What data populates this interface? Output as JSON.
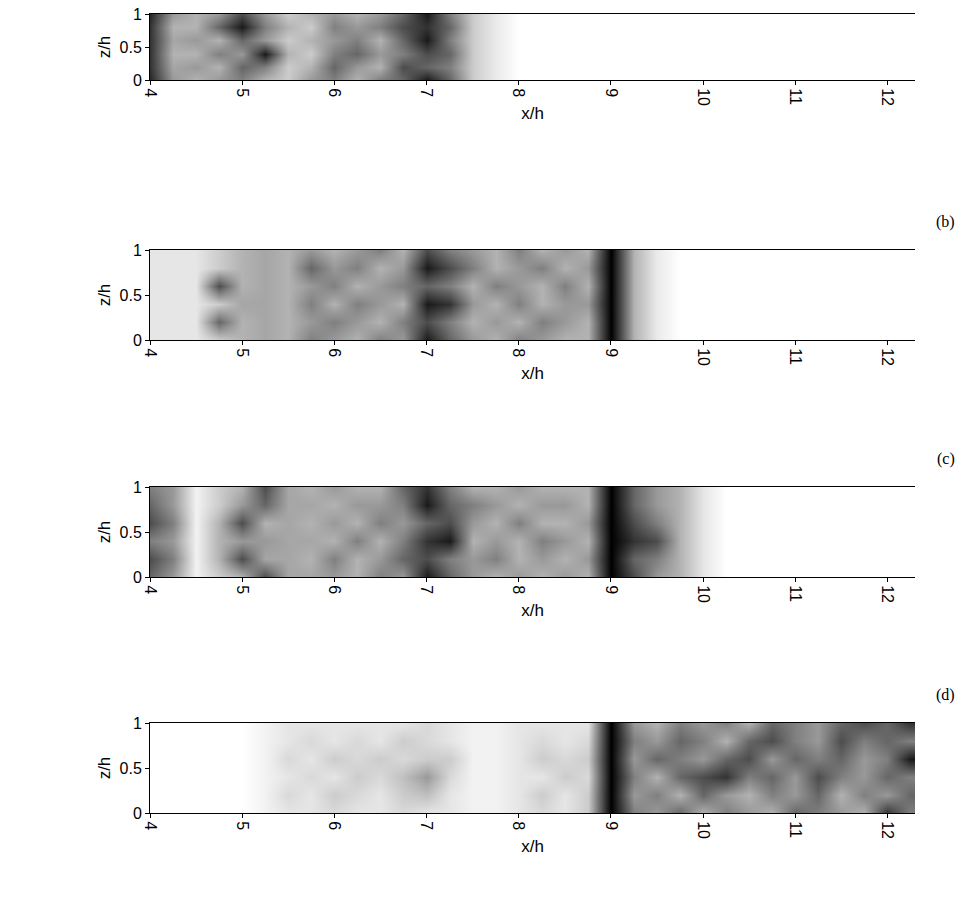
{
  "chart_data": [
    {
      "type": "heatmap",
      "x_label": "x/h",
      "y_label": "z/h",
      "xlim": [
        4,
        12.3
      ],
      "ylim": [
        0,
        1
      ],
      "xticks": [
        4,
        5,
        6,
        7,
        8,
        9,
        10,
        11,
        12
      ],
      "yticks": [
        0,
        0.5,
        1
      ],
      "zlim": [
        0,
        1
      ],
      "x": [
        4,
        4.25,
        4.5,
        4.75,
        5,
        5.25,
        5.5,
        5.75,
        6,
        6.25,
        6.5,
        6.75,
        7,
        7.25,
        7.5,
        7.75,
        8,
        8.25,
        8.5,
        8.75,
        9,
        9.25,
        9.5,
        9.75,
        10,
        10.25,
        10.5,
        10.75,
        11,
        11.25,
        11.5,
        11.75,
        12,
        12.25
      ],
      "y": [
        0,
        0.2,
        0.4,
        0.6,
        0.8,
        1
      ],
      "z": [
        [
          0.85,
          0.4,
          0.3,
          0.4,
          0.5,
          0.3,
          0.2,
          0.4,
          0.5,
          0.3,
          0.5,
          0.6,
          0.9,
          0.6,
          0.2,
          0.08,
          0,
          0,
          0,
          0,
          0,
          0,
          0,
          0,
          0,
          0,
          0,
          0,
          0,
          0,
          0,
          0,
          0,
          0
        ],
        [
          0.8,
          0.35,
          0.4,
          0.3,
          0.6,
          0.5,
          0.2,
          0.3,
          0.6,
          0.4,
          0.3,
          0.7,
          0.6,
          0.5,
          0.2,
          0.08,
          0,
          0,
          0,
          0,
          0,
          0,
          0,
          0,
          0,
          0,
          0,
          0,
          0,
          0,
          0,
          0,
          0,
          0
        ],
        [
          0.8,
          0.3,
          0.3,
          0.5,
          0.4,
          0.9,
          0.3,
          0.2,
          0.5,
          0.6,
          0.4,
          0.5,
          0.7,
          0.6,
          0.2,
          0.08,
          0,
          0,
          0,
          0,
          0,
          0,
          0,
          0,
          0,
          0,
          0,
          0,
          0,
          0,
          0,
          0,
          0,
          0
        ],
        [
          0.8,
          0.35,
          0.4,
          0.3,
          0.6,
          0.4,
          0.2,
          0.3,
          0.4,
          0.5,
          0.3,
          0.6,
          0.9,
          0.5,
          0.2,
          0.08,
          0,
          0,
          0,
          0,
          0,
          0,
          0,
          0,
          0,
          0,
          0,
          0,
          0,
          0,
          0,
          0,
          0,
          0
        ],
        [
          0.8,
          0.3,
          0.3,
          0.6,
          0.9,
          0.5,
          0.3,
          0.2,
          0.5,
          0.4,
          0.5,
          0.7,
          0.8,
          0.6,
          0.2,
          0.08,
          0,
          0,
          0,
          0,
          0,
          0,
          0,
          0,
          0,
          0,
          0,
          0,
          0,
          0,
          0,
          0,
          0,
          0
        ],
        [
          0.85,
          0.4,
          0.3,
          0.4,
          0.7,
          0.4,
          0.2,
          0.3,
          0.4,
          0.3,
          0.4,
          0.6,
          0.9,
          0.5,
          0.2,
          0.08,
          0,
          0,
          0,
          0,
          0,
          0,
          0,
          0,
          0,
          0,
          0,
          0,
          0,
          0,
          0,
          0,
          0,
          0
        ]
      ]
    },
    {
      "type": "heatmap",
      "label": "(b)",
      "x_label": "x/h",
      "y_label": "z/h",
      "xlim": [
        4,
        12.3
      ],
      "ylim": [
        0,
        1
      ],
      "xticks": [
        4,
        5,
        6,
        7,
        8,
        9,
        10,
        11,
        12
      ],
      "yticks": [
        0,
        0.5,
        1
      ],
      "zlim": [
        0,
        1
      ],
      "x": [
        4,
        4.25,
        4.5,
        4.75,
        5,
        5.25,
        5.5,
        5.75,
        6,
        6.25,
        6.5,
        6.75,
        7,
        7.25,
        7.5,
        7.75,
        8,
        8.25,
        8.5,
        8.75,
        9,
        9.25,
        9.5,
        9.75,
        10,
        10.25,
        10.5,
        10.75,
        11,
        11.25,
        11.5,
        11.75,
        12,
        12.25
      ],
      "y": [
        0,
        0.2,
        0.4,
        0.6,
        0.8,
        1
      ],
      "z": [
        [
          0.1,
          0.1,
          0.1,
          0.2,
          0.3,
          0.35,
          0.3,
          0.5,
          0.4,
          0.3,
          0.5,
          0.4,
          0.9,
          0.6,
          0.4,
          0.3,
          0.5,
          0.4,
          0.3,
          0.3,
          1,
          0.3,
          0.08,
          0,
          0,
          0,
          0,
          0,
          0,
          0,
          0,
          0,
          0,
          0
        ],
        [
          0.1,
          0.1,
          0.1,
          0.6,
          0.3,
          0.35,
          0.3,
          0.4,
          0.5,
          0.4,
          0.3,
          0.5,
          0.7,
          0.5,
          0.3,
          0.4,
          0.3,
          0.5,
          0.4,
          0.3,
          1,
          0.3,
          0.08,
          0,
          0,
          0,
          0,
          0,
          0,
          0,
          0,
          0,
          0,
          0
        ],
        [
          0.1,
          0.1,
          0.1,
          0.2,
          0.35,
          0.35,
          0.3,
          0.5,
          0.3,
          0.5,
          0.4,
          0.3,
          0.9,
          0.8,
          0.4,
          0.3,
          0.5,
          0.3,
          0.4,
          0.4,
          1,
          0.3,
          0.08,
          0,
          0,
          0,
          0,
          0,
          0,
          0,
          0,
          0,
          0,
          0
        ],
        [
          0.1,
          0.1,
          0.1,
          0.7,
          0.3,
          0.35,
          0.3,
          0.4,
          0.5,
          0.3,
          0.4,
          0.5,
          0.6,
          0.5,
          0.3,
          0.5,
          0.4,
          0.3,
          0.5,
          0.3,
          1,
          0.3,
          0.08,
          0,
          0,
          0,
          0,
          0,
          0,
          0,
          0,
          0,
          0,
          0
        ],
        [
          0.1,
          0.1,
          0.1,
          0.2,
          0.3,
          0.35,
          0.3,
          0.6,
          0.4,
          0.5,
          0.3,
          0.4,
          0.9,
          0.7,
          0.5,
          0.3,
          0.4,
          0.5,
          0.3,
          0.4,
          1,
          0.3,
          0.08,
          0,
          0,
          0,
          0,
          0,
          0,
          0,
          0,
          0,
          0,
          0
        ],
        [
          0.1,
          0.1,
          0.1,
          0.2,
          0.3,
          0.35,
          0.3,
          0.4,
          0.3,
          0.4,
          0.5,
          0.3,
          0.7,
          0.5,
          0.4,
          0.3,
          0.5,
          0.3,
          0.4,
          0.3,
          1,
          0.3,
          0.08,
          0,
          0,
          0,
          0,
          0,
          0,
          0,
          0,
          0,
          0,
          0
        ]
      ]
    },
    {
      "type": "heatmap",
      "label": "(c)",
      "x_label": "x/h",
      "y_label": "z/h",
      "xlim": [
        4,
        12.3
      ],
      "ylim": [
        0,
        1
      ],
      "xticks": [
        4,
        5,
        6,
        7,
        8,
        9,
        10,
        11,
        12
      ],
      "yticks": [
        0,
        0.5,
        1
      ],
      "zlim": [
        0,
        1
      ],
      "x": [
        4,
        4.25,
        4.5,
        4.75,
        5,
        5.25,
        5.5,
        5.75,
        6,
        6.25,
        6.5,
        6.75,
        7,
        7.25,
        7.5,
        7.75,
        8,
        8.25,
        8.5,
        8.75,
        9,
        9.25,
        9.5,
        9.75,
        10,
        10.25,
        10.5,
        10.75,
        11,
        11.25,
        11.5,
        11.75,
        12,
        12.25
      ],
      "y": [
        0,
        0.2,
        0.4,
        0.6,
        0.8,
        1
      ],
      "z": [
        [
          0.6,
          0.4,
          0.05,
          0.2,
          0.3,
          0.7,
          0.35,
          0.35,
          0.4,
          0.3,
          0.5,
          0.4,
          0.9,
          0.6,
          0.4,
          0.3,
          0.4,
          0.3,
          0.4,
          0.3,
          1,
          0.7,
          0.4,
          0.3,
          0.1,
          0,
          0,
          0,
          0,
          0,
          0,
          0,
          0,
          0
        ],
        [
          0.7,
          0.5,
          0.05,
          0.3,
          0.7,
          0.35,
          0.35,
          0.3,
          0.5,
          0.3,
          0.4,
          0.6,
          0.7,
          0.5,
          0.4,
          0.5,
          0.3,
          0.4,
          0.3,
          0.4,
          1,
          0.6,
          0.5,
          0.3,
          0.1,
          0,
          0,
          0,
          0,
          0,
          0,
          0,
          0,
          0
        ],
        [
          0.5,
          0.4,
          0.05,
          0.3,
          0.4,
          0.4,
          0.35,
          0.35,
          0.3,
          0.5,
          0.3,
          0.5,
          0.8,
          0.9,
          0.3,
          0.4,
          0.3,
          0.5,
          0.4,
          0.3,
          1,
          0.8,
          0.7,
          0.3,
          0.1,
          0,
          0,
          0,
          0,
          0,
          0,
          0,
          0,
          0
        ],
        [
          0.7,
          0.5,
          0.05,
          0.3,
          0.7,
          0.3,
          0.35,
          0.3,
          0.4,
          0.3,
          0.5,
          0.4,
          0.6,
          0.7,
          0.4,
          0.3,
          0.5,
          0.3,
          0.3,
          0.4,
          1,
          0.7,
          0.5,
          0.3,
          0.1,
          0,
          0,
          0,
          0,
          0,
          0,
          0,
          0,
          0
        ],
        [
          0.6,
          0.4,
          0.05,
          0.2,
          0.4,
          0.6,
          0.35,
          0.35,
          0.3,
          0.4,
          0.4,
          0.5,
          0.9,
          0.6,
          0.5,
          0.4,
          0.3,
          0.4,
          0.4,
          0.3,
          1,
          0.6,
          0.4,
          0.3,
          0.1,
          0,
          0,
          0,
          0,
          0,
          0,
          0,
          0,
          0
        ],
        [
          0.5,
          0.4,
          0.05,
          0.2,
          0.3,
          0.7,
          0.35,
          0.3,
          0.4,
          0.3,
          0.3,
          0.6,
          0.8,
          0.5,
          0.3,
          0.3,
          0.4,
          0.3,
          0.3,
          0.3,
          1,
          0.6,
          0.4,
          0.3,
          0.1,
          0,
          0,
          0,
          0,
          0,
          0,
          0,
          0,
          0
        ]
      ]
    },
    {
      "type": "heatmap",
      "label": "(d)",
      "x_label": "x/h",
      "y_label": "z/h",
      "xlim": [
        4,
        12.3
      ],
      "ylim": [
        0,
        1
      ],
      "xticks": [
        4,
        5,
        6,
        7,
        8,
        9,
        10,
        11,
        12
      ],
      "yticks": [
        0,
        0.5,
        1
      ],
      "zlim": [
        0,
        1
      ],
      "x": [
        4,
        4.25,
        4.5,
        4.75,
        5,
        5.25,
        5.5,
        5.75,
        6,
        6.25,
        6.5,
        6.75,
        7,
        7.25,
        7.5,
        7.75,
        8,
        8.25,
        8.5,
        8.75,
        9,
        9.25,
        9.5,
        9.75,
        10,
        10.25,
        10.5,
        10.75,
        11,
        11.25,
        11.5,
        11.75,
        12,
        12.25
      ],
      "y": [
        0,
        0.2,
        0.4,
        0.6,
        0.8,
        1
      ],
      "z": [
        [
          0,
          0,
          0,
          0,
          0,
          0.05,
          0.1,
          0.1,
          0.15,
          0.1,
          0.1,
          0.15,
          0.1,
          0.1,
          0.05,
          0.05,
          0.1,
          0.15,
          0.1,
          0.2,
          1,
          0.5,
          0.4,
          0.6,
          0.3,
          0.5,
          0.4,
          0.3,
          0.6,
          0.5,
          0.4,
          0.3,
          0.8,
          0.5
        ],
        [
          0,
          0,
          0,
          0,
          0,
          0.05,
          0.15,
          0.1,
          0.2,
          0.15,
          0.1,
          0.2,
          0.25,
          0.1,
          0.05,
          0.05,
          0.1,
          0.2,
          0.1,
          0.2,
          1,
          0.4,
          0.5,
          0.3,
          0.6,
          0.4,
          0.3,
          0.5,
          0.4,
          0.6,
          0.3,
          0.5,
          0.4,
          0.6
        ],
        [
          0,
          0,
          0,
          0,
          0,
          0.05,
          0.1,
          0.15,
          0.1,
          0.2,
          0.15,
          0.25,
          0.4,
          0.15,
          0.05,
          0.05,
          0.1,
          0.1,
          0.2,
          0.15,
          1,
          0.5,
          0.3,
          0.6,
          0.7,
          0.8,
          0.5,
          0.6,
          0.4,
          0.7,
          0.5,
          0.4,
          0.6,
          0.5
        ],
        [
          0,
          0,
          0,
          0,
          0,
          0.05,
          0.15,
          0.1,
          0.2,
          0.15,
          0.2,
          0.15,
          0.2,
          0.2,
          0.05,
          0.05,
          0.1,
          0.2,
          0.15,
          0.2,
          1,
          0.4,
          0.6,
          0.5,
          0.4,
          0.6,
          0.7,
          0.4,
          0.6,
          0.5,
          0.6,
          0.4,
          0.5,
          0.9
        ],
        [
          0,
          0,
          0,
          0,
          0,
          0.05,
          0.1,
          0.15,
          0.1,
          0.15,
          0.1,
          0.2,
          0.15,
          0.1,
          0.05,
          0.05,
          0.1,
          0.15,
          0.1,
          0.15,
          1,
          0.5,
          0.4,
          0.6,
          0.5,
          0.3,
          0.6,
          0.7,
          0.5,
          0.4,
          0.7,
          0.5,
          0.6,
          0.5
        ],
        [
          0,
          0,
          0,
          0,
          0,
          0.05,
          0.1,
          0.1,
          0.1,
          0.1,
          0.1,
          0.1,
          0.15,
          0.1,
          0.05,
          0.05,
          0.1,
          0.1,
          0.1,
          0.1,
          1,
          0.4,
          0.3,
          0.5,
          0.4,
          0.5,
          0.3,
          0.6,
          0.5,
          0.4,
          0.6,
          0.7,
          0.6,
          0.8
        ]
      ]
    }
  ]
}
